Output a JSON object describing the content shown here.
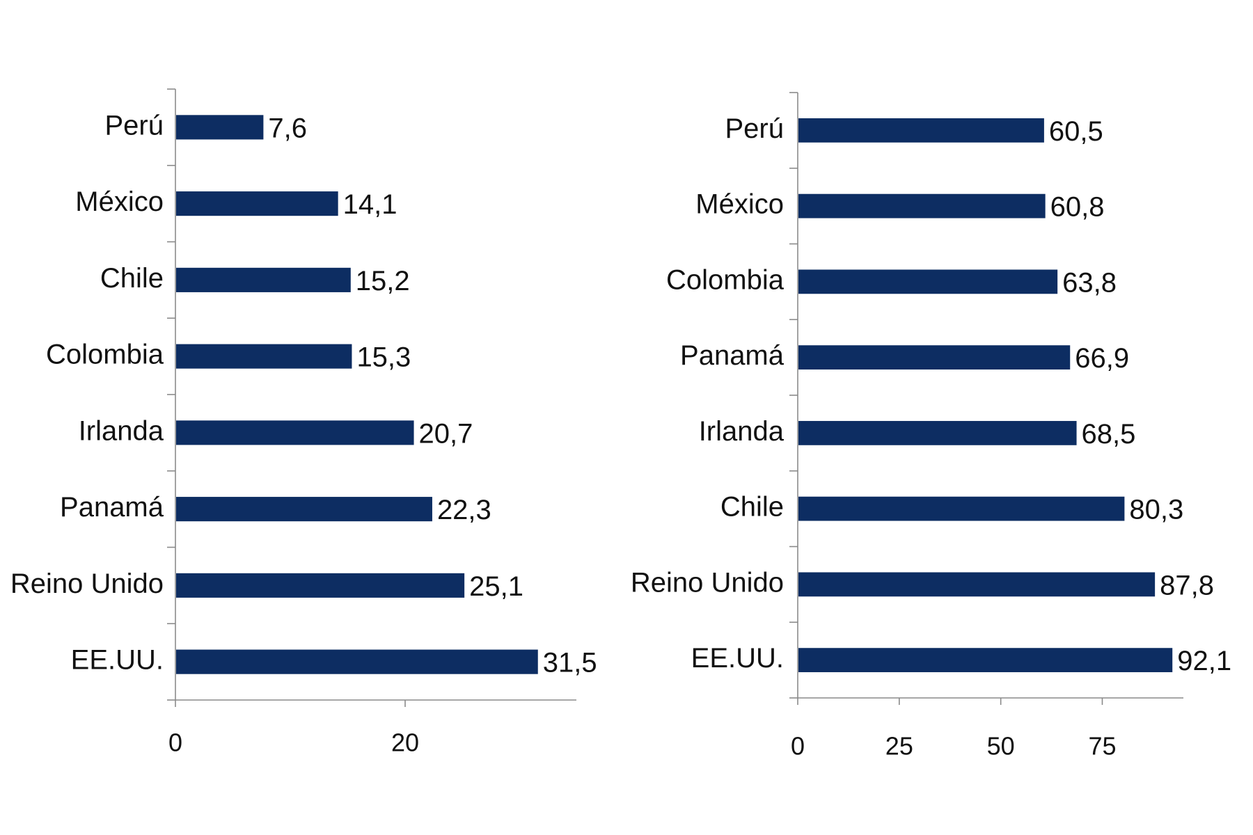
{
  "colors": {
    "bar": "#0d2d62",
    "axis": "#8a8a8a",
    "text": "#111111"
  },
  "chart_data": [
    {
      "type": "bar",
      "orientation": "horizontal",
      "categories": [
        "Perú",
        "México",
        "Chile",
        "Colombia",
        "Irlanda",
        "Panamá",
        "Reino Unido",
        "EE.UU."
      ],
      "values": [
        7.6,
        14.1,
        15.2,
        15.3,
        20.7,
        22.3,
        25.1,
        31.5
      ],
      "value_labels": [
        "7,6",
        "14,1",
        "15,2",
        "15,3",
        "20,7",
        "22,3",
        "25,1",
        "31,5"
      ],
      "xticks": [
        0,
        20
      ],
      "xlim": [
        0,
        35
      ],
      "grid": false
    },
    {
      "type": "bar",
      "orientation": "horizontal",
      "categories": [
        "Perú",
        "México",
        "Colombia",
        "Panamá",
        "Irlanda",
        "Chile",
        "Reino Unido",
        "EE.UU."
      ],
      "values": [
        60.5,
        60.8,
        63.8,
        66.9,
        68.5,
        80.3,
        87.8,
        92.1
      ],
      "value_labels": [
        "60,5",
        "60,8",
        "63,8",
        "66,9",
        "68,5",
        "80,3",
        "87,8",
        "92,1"
      ],
      "xticks": [
        0,
        25,
        50,
        75
      ],
      "xlim": [
        0,
        95
      ],
      "grid": false
    }
  ]
}
